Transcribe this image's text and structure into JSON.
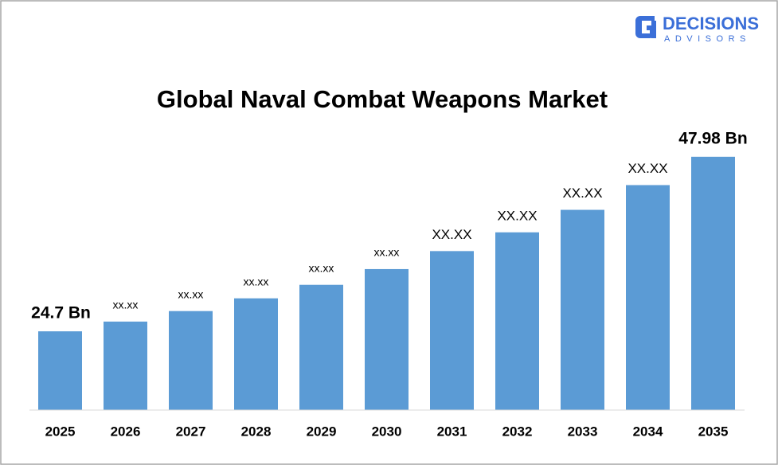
{
  "logo": {
    "name": "DECISIONS",
    "tagline": "ADVISORS"
  },
  "chart_data": {
    "type": "bar",
    "title": "Global Naval Combat Weapons Market",
    "categories": [
      "2025",
      "2026",
      "2027",
      "2028",
      "2029",
      "2030",
      "2031",
      "2032",
      "2033",
      "2034",
      "2035"
    ],
    "values": [
      24.7,
      26.0,
      27.4,
      29.1,
      30.9,
      33.0,
      35.4,
      37.9,
      40.9,
      44.2,
      47.98
    ],
    "value_labels": [
      "24.7 Bn",
      "xx.xx",
      "xx.xx",
      "xx.xx",
      "xx.xx",
      "xx.xx",
      "XX.XX",
      "XX.XX",
      "XX.XX",
      "XX.XX",
      "47.98 Bn"
    ],
    "color": "#5b9bd5",
    "ylim": [
      14.2,
      52
    ]
  }
}
